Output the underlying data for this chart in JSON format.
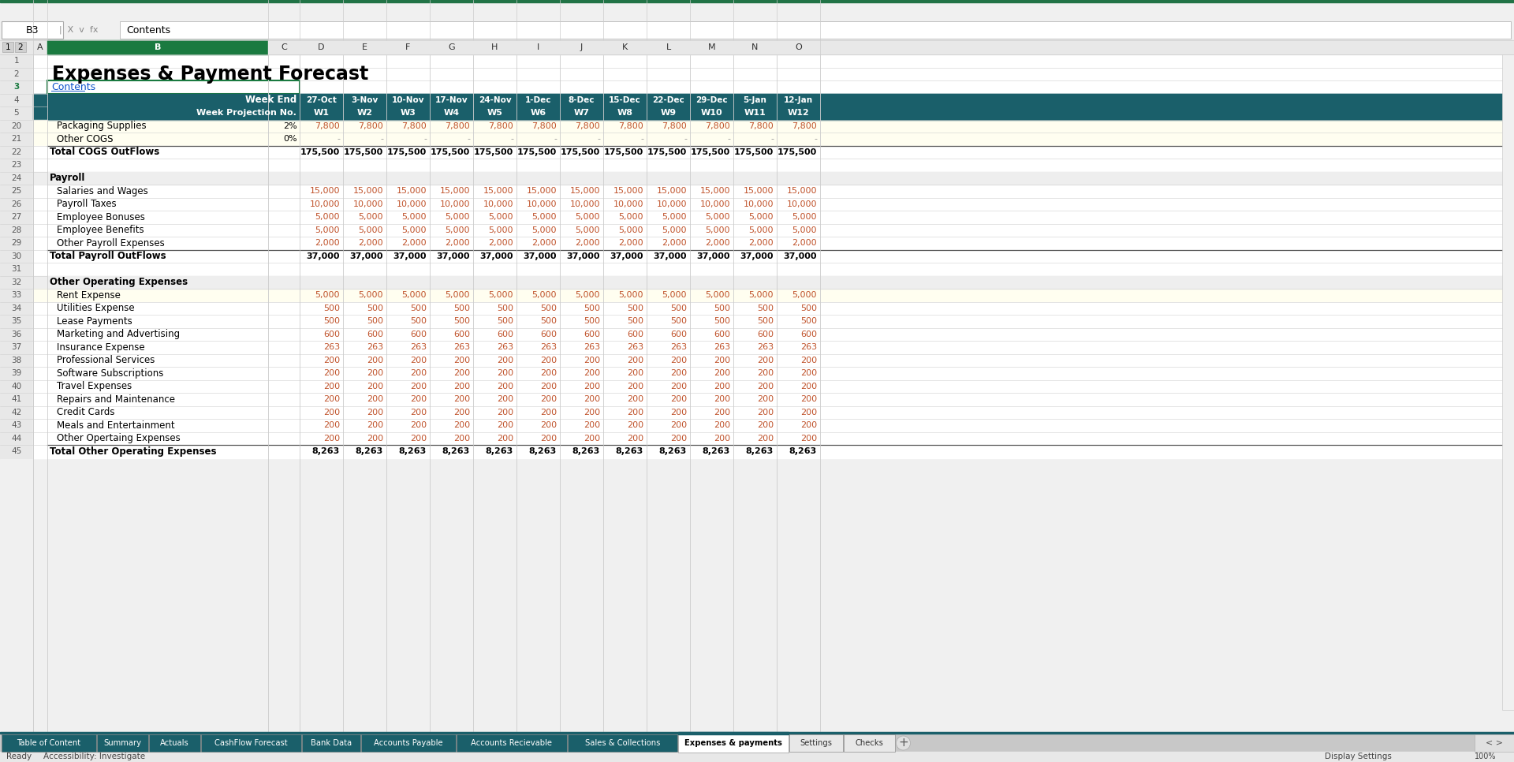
{
  "title": "Expenses & Payment Forecast",
  "contents_link": "Contents",
  "header_bg": "#1a5f6a",
  "header_text_color": "#ffffff",
  "formula_bar_text": "Contents",
  "cell_ref": "B3",
  "week_ends": [
    "27-Oct",
    "3-Nov",
    "10-Nov",
    "17-Nov",
    "24-Nov",
    "1-Dec",
    "8-Dec",
    "15-Dec",
    "22-Dec",
    "29-Dec",
    "5-Jan",
    "12-Jan"
  ],
  "week_nos": [
    "W1",
    "W2",
    "W3",
    "W4",
    "W5",
    "W6",
    "W7",
    "W8",
    "W9",
    "W10",
    "W11",
    "W12"
  ],
  "rows": [
    {
      "row": 1,
      "label": "",
      "indent": false,
      "bold": false,
      "values": [],
      "bg": "#ffffff",
      "pct": ""
    },
    {
      "row": 2,
      "label": "Expenses & Payment Forecast",
      "indent": false,
      "bold": true,
      "values": [],
      "bg": "#ffffff",
      "pct": "",
      "is_title": true
    },
    {
      "row": 3,
      "label": "Contents",
      "indent": false,
      "bold": false,
      "values": [],
      "bg": "#ffffff",
      "pct": "",
      "is_link": true
    },
    {
      "row": 4,
      "label": "",
      "indent": false,
      "bold": false,
      "values": [],
      "bg": "#1a5f6a",
      "pct": "",
      "is_header1": true
    },
    {
      "row": 5,
      "label": "",
      "indent": false,
      "bold": false,
      "values": [],
      "bg": "#1a5f6a",
      "pct": "",
      "is_header2": true
    },
    {
      "row": 20,
      "label": "Packaging Supplies",
      "indent": true,
      "bold": false,
      "values": [
        7800,
        7800,
        7800,
        7800,
        7800,
        7800,
        7800,
        7800,
        7800,
        7800,
        7800,
        7800
      ],
      "bg": "#fffef0",
      "pct": "2%"
    },
    {
      "row": 21,
      "label": "Other COGS",
      "indent": true,
      "bold": false,
      "values": [
        null,
        null,
        null,
        null,
        null,
        null,
        null,
        null,
        null,
        null,
        null,
        null
      ],
      "bg": "#fffef0",
      "pct": "0%"
    },
    {
      "row": 22,
      "label": "Total COGS OutFlows",
      "indent": false,
      "bold": true,
      "values": [
        175500,
        175500,
        175500,
        175500,
        175500,
        175500,
        175500,
        175500,
        175500,
        175500,
        175500,
        175500
      ],
      "bg": "#ffffff",
      "pct": ""
    },
    {
      "row": 23,
      "label": "",
      "indent": false,
      "bold": false,
      "values": [],
      "bg": "#ffffff",
      "pct": ""
    },
    {
      "row": 24,
      "label": "Payroll",
      "indent": false,
      "bold": true,
      "values": [],
      "bg": "#eeeeee",
      "pct": ""
    },
    {
      "row": 25,
      "label": "Salaries and Wages",
      "indent": true,
      "bold": false,
      "values": [
        15000,
        15000,
        15000,
        15000,
        15000,
        15000,
        15000,
        15000,
        15000,
        15000,
        15000,
        15000
      ],
      "bg": "#ffffff",
      "pct": ""
    },
    {
      "row": 26,
      "label": "Payroll Taxes",
      "indent": true,
      "bold": false,
      "values": [
        10000,
        10000,
        10000,
        10000,
        10000,
        10000,
        10000,
        10000,
        10000,
        10000,
        10000,
        10000
      ],
      "bg": "#ffffff",
      "pct": ""
    },
    {
      "row": 27,
      "label": "Employee Bonuses",
      "indent": true,
      "bold": false,
      "values": [
        5000,
        5000,
        5000,
        5000,
        5000,
        5000,
        5000,
        5000,
        5000,
        5000,
        5000,
        5000
      ],
      "bg": "#ffffff",
      "pct": ""
    },
    {
      "row": 28,
      "label": "Employee Benefits",
      "indent": true,
      "bold": false,
      "values": [
        5000,
        5000,
        5000,
        5000,
        5000,
        5000,
        5000,
        5000,
        5000,
        5000,
        5000,
        5000
      ],
      "bg": "#ffffff",
      "pct": ""
    },
    {
      "row": 29,
      "label": "Other Payroll Expenses",
      "indent": true,
      "bold": false,
      "values": [
        2000,
        2000,
        2000,
        2000,
        2000,
        2000,
        2000,
        2000,
        2000,
        2000,
        2000,
        2000
      ],
      "bg": "#ffffff",
      "pct": ""
    },
    {
      "row": 30,
      "label": "Total Payroll OutFlows",
      "indent": false,
      "bold": true,
      "values": [
        37000,
        37000,
        37000,
        37000,
        37000,
        37000,
        37000,
        37000,
        37000,
        37000,
        37000,
        37000
      ],
      "bg": "#ffffff",
      "pct": ""
    },
    {
      "row": 31,
      "label": "",
      "indent": false,
      "bold": false,
      "values": [],
      "bg": "#ffffff",
      "pct": ""
    },
    {
      "row": 32,
      "label": "Other Operating Expenses",
      "indent": false,
      "bold": true,
      "values": [],
      "bg": "#eeeeee",
      "pct": ""
    },
    {
      "row": 33,
      "label": "Rent Expense",
      "indent": true,
      "bold": false,
      "values": [
        5000,
        5000,
        5000,
        5000,
        5000,
        5000,
        5000,
        5000,
        5000,
        5000,
        5000,
        5000
      ],
      "bg": "#fffef0",
      "pct": ""
    },
    {
      "row": 34,
      "label": "Utilities Expense",
      "indent": true,
      "bold": false,
      "values": [
        500,
        500,
        500,
        500,
        500,
        500,
        500,
        500,
        500,
        500,
        500,
        500
      ],
      "bg": "#ffffff",
      "pct": ""
    },
    {
      "row": 35,
      "label": "Lease Payments",
      "indent": true,
      "bold": false,
      "values": [
        500,
        500,
        500,
        500,
        500,
        500,
        500,
        500,
        500,
        500,
        500,
        500
      ],
      "bg": "#ffffff",
      "pct": ""
    },
    {
      "row": 36,
      "label": "Marketing and Advertising",
      "indent": true,
      "bold": false,
      "values": [
        600,
        600,
        600,
        600,
        600,
        600,
        600,
        600,
        600,
        600,
        600,
        600
      ],
      "bg": "#ffffff",
      "pct": ""
    },
    {
      "row": 37,
      "label": "Insurance Expense",
      "indent": true,
      "bold": false,
      "values": [
        263,
        263,
        263,
        263,
        263,
        263,
        263,
        263,
        263,
        263,
        263,
        263
      ],
      "bg": "#ffffff",
      "pct": ""
    },
    {
      "row": 38,
      "label": "Professional Services",
      "indent": true,
      "bold": false,
      "values": [
        200,
        200,
        200,
        200,
        200,
        200,
        200,
        200,
        200,
        200,
        200,
        200
      ],
      "bg": "#ffffff",
      "pct": ""
    },
    {
      "row": 39,
      "label": "Software Subscriptions",
      "indent": true,
      "bold": false,
      "values": [
        200,
        200,
        200,
        200,
        200,
        200,
        200,
        200,
        200,
        200,
        200,
        200
      ],
      "bg": "#ffffff",
      "pct": ""
    },
    {
      "row": 40,
      "label": "Travel Expenses",
      "indent": true,
      "bold": false,
      "values": [
        200,
        200,
        200,
        200,
        200,
        200,
        200,
        200,
        200,
        200,
        200,
        200
      ],
      "bg": "#ffffff",
      "pct": ""
    },
    {
      "row": 41,
      "label": "Repairs and Maintenance",
      "indent": true,
      "bold": false,
      "values": [
        200,
        200,
        200,
        200,
        200,
        200,
        200,
        200,
        200,
        200,
        200,
        200
      ],
      "bg": "#ffffff",
      "pct": ""
    },
    {
      "row": 42,
      "label": "Credit Cards",
      "indent": true,
      "bold": false,
      "values": [
        200,
        200,
        200,
        200,
        200,
        200,
        200,
        200,
        200,
        200,
        200,
        200
      ],
      "bg": "#ffffff",
      "pct": ""
    },
    {
      "row": 43,
      "label": "Meals and Entertainment",
      "indent": true,
      "bold": false,
      "values": [
        200,
        200,
        200,
        200,
        200,
        200,
        200,
        200,
        200,
        200,
        200,
        200
      ],
      "bg": "#ffffff",
      "pct": ""
    },
    {
      "row": 44,
      "label": "Other Opertaing Expenses",
      "indent": true,
      "bold": false,
      "values": [
        200,
        200,
        200,
        200,
        200,
        200,
        200,
        200,
        200,
        200,
        200,
        200
      ],
      "bg": "#ffffff",
      "pct": ""
    },
    {
      "row": 45,
      "label": "Total Other Operating Expenses",
      "indent": false,
      "bold": true,
      "values": [
        8263,
        8263,
        8263,
        8263,
        8263,
        8263,
        8263,
        8263,
        8263,
        8263,
        8263,
        8263
      ],
      "bg": "#ffffff",
      "pct": ""
    }
  ],
  "tabs": [
    {
      "name": "Table of Content",
      "bg": "#1a5f6a",
      "fg": "#ffffff",
      "active": false
    },
    {
      "name": "Summary",
      "bg": "#1a5f6a",
      "fg": "#ffffff",
      "active": false
    },
    {
      "name": "Actuals",
      "bg": "#1a5f6a",
      "fg": "#ffffff",
      "active": false
    },
    {
      "name": "CashFlow Forecast",
      "bg": "#1a5f6a",
      "fg": "#ffffff",
      "active": false
    },
    {
      "name": "Bank Data",
      "bg": "#1a5f6a",
      "fg": "#ffffff",
      "active": false
    },
    {
      "name": "Accounts Payable",
      "bg": "#1a5f6a",
      "fg": "#ffffff",
      "active": false
    },
    {
      "name": "Accounts Recievable",
      "bg": "#1a5f6a",
      "fg": "#ffffff",
      "active": false
    },
    {
      "name": "Sales & Collections",
      "bg": "#1a5f6a",
      "fg": "#ffffff",
      "active": false
    },
    {
      "name": "Expenses & payments",
      "bg": "#1a5f6a",
      "fg": "#ffffff",
      "active": true
    },
    {
      "name": "Settings",
      "bg": "#e8e8e8",
      "fg": "#333333",
      "active": false
    },
    {
      "name": "Checks",
      "bg": "#e8e8e8",
      "fg": "#333333",
      "active": false
    }
  ],
  "data_text_color": "#c0522a",
  "total_text_color": "#000000",
  "link_color": "#1155cc",
  "row_number_color": "#595959",
  "col_letter_color": "#333333",
  "grid_color": "#d0d0d0",
  "selected_cell_color": "#1a7a40"
}
